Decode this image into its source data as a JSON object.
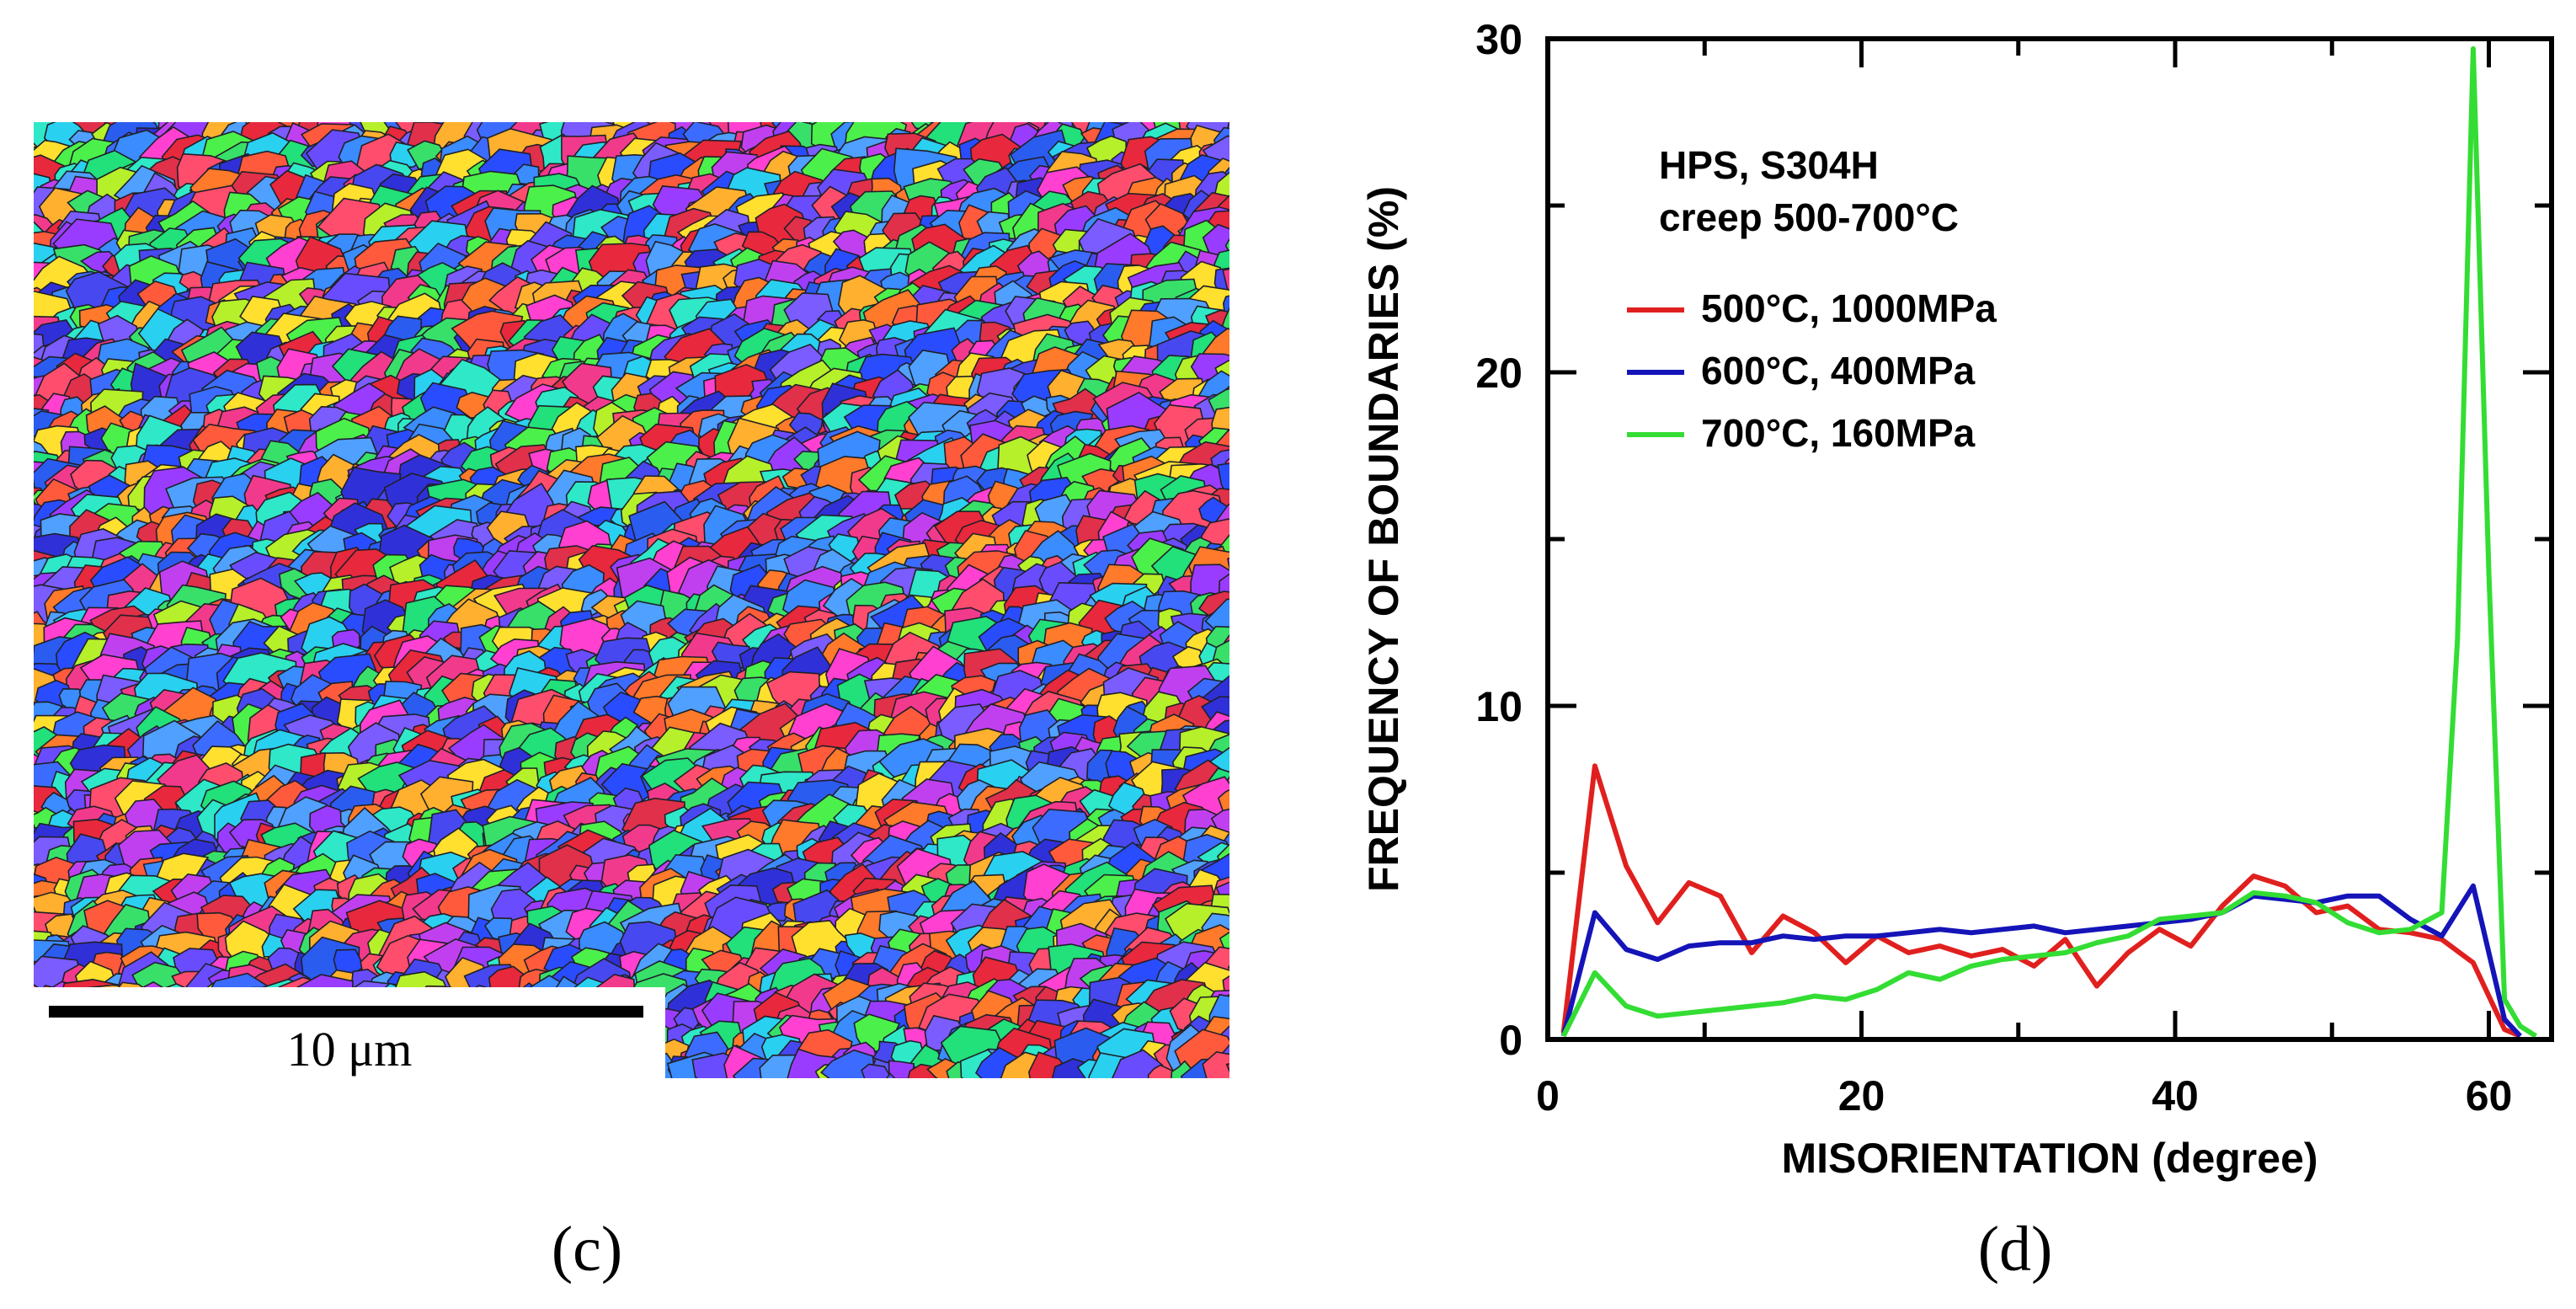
{
  "panel_labels": {
    "left": "(c)",
    "right": "(d)"
  },
  "ebsd_map": {
    "scale_bar_label": "10 μm"
  },
  "chart_data": {
    "type": "line",
    "title": "",
    "xlabel": "MISORIENTATION (degree)",
    "ylabel": "FREQUENCY OF BOUNDARIES (%)",
    "xlim": [
      0,
      64
    ],
    "ylim": [
      0,
      30
    ],
    "x_ticks": [
      0,
      20,
      40,
      60
    ],
    "y_ticks": [
      0,
      10,
      20,
      30
    ],
    "annotation": [
      "HPS, S304H",
      "creep 500-700°C"
    ],
    "legend_position": "top-left",
    "series": [
      {
        "name": "500°C, 1000MPa",
        "color": "#e0201e",
        "x": [
          1,
          3,
          5,
          7,
          9,
          11,
          13,
          15,
          17,
          19,
          21,
          23,
          25,
          27,
          29,
          31,
          33,
          35,
          37,
          39,
          41,
          43,
          45,
          47,
          49,
          51,
          53,
          55,
          57,
          59,
          61,
          62
        ],
        "y": [
          0.2,
          8.2,
          5.2,
          3.5,
          4.7,
          4.3,
          2.6,
          3.7,
          3.2,
          2.3,
          3.1,
          2.6,
          2.8,
          2.5,
          2.7,
          2.2,
          3.0,
          1.6,
          2.6,
          3.3,
          2.8,
          4.0,
          4.9,
          4.6,
          3.8,
          4.0,
          3.3,
          3.2,
          3.0,
          2.3,
          0.3,
          0.1
        ]
      },
      {
        "name": "600°C, 400MPa",
        "color": "#1414b8",
        "x": [
          1,
          3,
          5,
          7,
          9,
          11,
          13,
          15,
          17,
          19,
          21,
          23,
          25,
          27,
          29,
          31,
          33,
          35,
          37,
          39,
          41,
          43,
          45,
          47,
          49,
          51,
          53,
          55,
          57,
          59,
          61,
          62
        ],
        "y": [
          0.1,
          3.8,
          2.7,
          2.4,
          2.8,
          2.9,
          2.9,
          3.1,
          3.0,
          3.1,
          3.1,
          3.2,
          3.3,
          3.2,
          3.3,
          3.4,
          3.2,
          3.3,
          3.4,
          3.5,
          3.6,
          3.8,
          4.3,
          4.2,
          4.1,
          4.3,
          4.3,
          3.6,
          3.1,
          4.6,
          0.6,
          0.1
        ]
      },
      {
        "name": "700°C, 160MPa",
        "color": "#33dd33",
        "x": [
          1,
          3,
          5,
          7,
          9,
          11,
          13,
          15,
          17,
          19,
          21,
          23,
          25,
          27,
          29,
          31,
          33,
          35,
          37,
          39,
          41,
          43,
          45,
          47,
          49,
          51,
          53,
          55,
          57,
          58,
          59,
          60,
          61,
          62,
          63
        ],
        "y": [
          0.1,
          2.0,
          1.0,
          0.7,
          0.8,
          0.9,
          1.0,
          1.1,
          1.3,
          1.2,
          1.5,
          2.0,
          1.8,
          2.2,
          2.4,
          2.5,
          2.6,
          2.9,
          3.1,
          3.6,
          3.7,
          3.8,
          4.4,
          4.3,
          4.1,
          3.5,
          3.2,
          3.3,
          3.8,
          12.0,
          29.7,
          14.0,
          1.2,
          0.4,
          0.1
        ]
      }
    ]
  }
}
